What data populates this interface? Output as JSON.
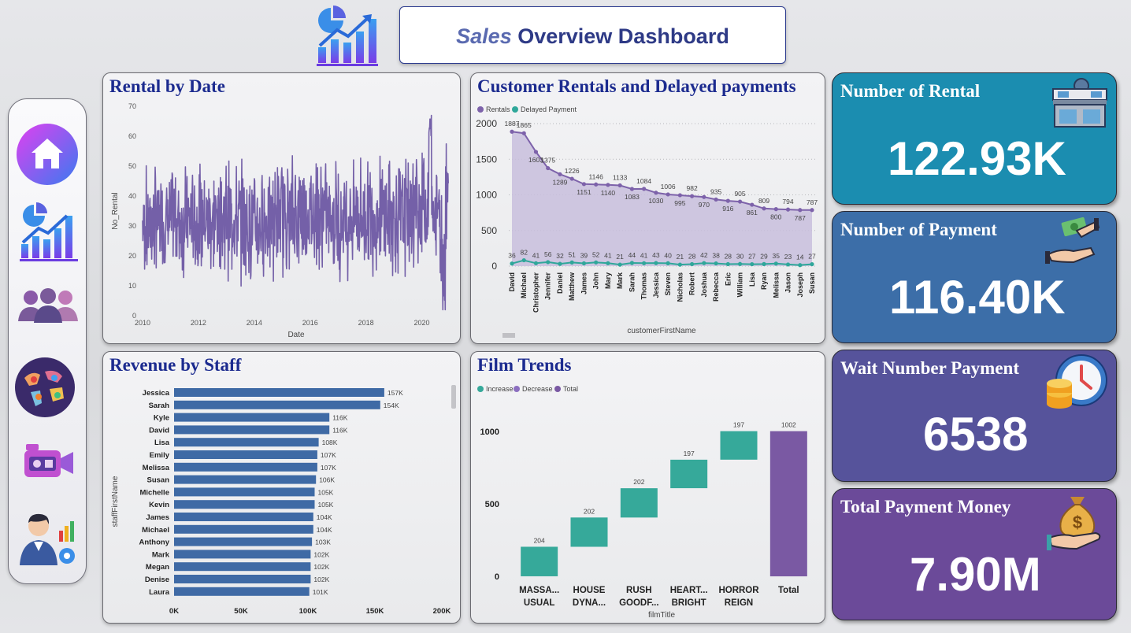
{
  "header": {
    "title_italic": "Sales",
    "title_rest": " Overview Dashboard"
  },
  "sidebar": {
    "items": [
      {
        "icon": "home-icon"
      },
      {
        "icon": "report-chart-icon"
      },
      {
        "icon": "users-icon"
      },
      {
        "icon": "world-map-icon"
      },
      {
        "icon": "video-camera-icon"
      },
      {
        "icon": "analyst-icon"
      }
    ]
  },
  "kpis": [
    {
      "title": "Number of Rental",
      "value": "122.93K",
      "color": "#1b8db0"
    },
    {
      "title": "Number of Payment",
      "value": "116.40K",
      "color": "#3c6ea8"
    },
    {
      "title": "Wait Number Payment",
      "value": "6538",
      "color": "#56539b"
    },
    {
      "title": "Total Payment Money",
      "value": "7.90M",
      "color": "#6b4a99"
    }
  ],
  "chart_data": [
    {
      "type": "line",
      "title": "Rental by Date",
      "xlabel": "Date",
      "ylabel": "No_Rental",
      "xlim": [
        2010,
        2021
      ],
      "ylim": [
        0,
        70
      ],
      "x_ticks": [
        "2010",
        "2012",
        "2014",
        "2016",
        "2018",
        "2020"
      ],
      "y_ticks": [
        "0",
        "10",
        "20",
        "30",
        "40",
        "50",
        "60",
        "70"
      ],
      "color": "#7460a8",
      "description_of_values": "daily series fluctuating mostly between 15 and 45, peaks near 68 in 2020",
      "sample_values": {
        "x": [
          2010.0,
          2011.0,
          2012.0,
          2013.0,
          2014.0,
          2015.0,
          2016.0,
          2017.0,
          2018.0,
          2019.0,
          2020.0,
          2020.3,
          2020.9
        ],
        "y": [
          30,
          32,
          31,
          33,
          30,
          34,
          35,
          32,
          34,
          33,
          36,
          68,
          5
        ]
      }
    },
    {
      "type": "area",
      "title": "Customer Rentals and Delayed payments",
      "xlabel": "customerFirstName",
      "ylim": [
        0,
        2000
      ],
      "y_ticks": [
        "0",
        "500",
        "1000",
        "1500",
        "2000"
      ],
      "categories": [
        "David",
        "Michael",
        "Christopher",
        "Jennifer",
        "Daniel",
        "Matthew",
        "James",
        "John",
        "Mary",
        "Mark",
        "Sarah",
        "Thomas",
        "Jessica",
        "Steven",
        "Nicholas",
        "Robert",
        "Joshua",
        "Rebecca",
        "Eric",
        "William",
        "Lisa",
        "Ryan",
        "Melissa",
        "Jason",
        "Joseph",
        "Susan"
      ],
      "series": [
        {
          "name": "Rentals",
          "color": "#7d62aa",
          "values": [
            1887,
            1865,
            1603,
            1375,
            1289,
            1226,
            1151,
            1146,
            1140,
            1133,
            1083,
            1084,
            1030,
            1006,
            995,
            982,
            970,
            935,
            916,
            905,
            861,
            809,
            800,
            794,
            787,
            787
          ]
        },
        {
          "name": "Delayed Payment",
          "color": "#2fa79a",
          "values": [
            36,
            82,
            41,
            56,
            32,
            51,
            39,
            52,
            41,
            21,
            44,
            41,
            43,
            40,
            21,
            28,
            42,
            38,
            28,
            30,
            27,
            29,
            35,
            23,
            14,
            27
          ]
        }
      ]
    },
    {
      "type": "bar",
      "orientation": "horizontal",
      "title": "Revenue by Staff",
      "ylabel": "staffFirstName",
      "xlim": [
        0,
        200000
      ],
      "x_ticks": [
        "0K",
        "50K",
        "100K",
        "150K",
        "200K"
      ],
      "color": "#3f6aa5",
      "categories": [
        "Jessica",
        "Sarah",
        "Kyle",
        "David",
        "Lisa",
        "Emily",
        "Melissa",
        "Susan",
        "Michelle",
        "Kevin",
        "James",
        "Michael",
        "Anthony",
        "Mark",
        "Megan",
        "Denise",
        "Laura"
      ],
      "values": [
        157000,
        154000,
        116000,
        116000,
        108000,
        107000,
        107000,
        106000,
        105000,
        105000,
        104000,
        104000,
        103000,
        102000,
        102000,
        102000,
        101000
      ],
      "labels": [
        "157K",
        "154K",
        "116K",
        "116K",
        "108K",
        "107K",
        "107K",
        "106K",
        "105K",
        "105K",
        "104K",
        "104K",
        "103K",
        "102K",
        "102K",
        "102K",
        "101K"
      ]
    },
    {
      "type": "waterfall",
      "title": "Film Trends",
      "xlabel": "filmTitle",
      "ylim": [
        0,
        1000
      ],
      "y_ticks": [
        "0",
        "500",
        "1000"
      ],
      "legend": [
        {
          "name": "Increase",
          "color": "#36a99a"
        },
        {
          "name": "Decrease",
          "color": "#8c6fc0"
        },
        {
          "name": "Total",
          "color": "#7a59a3"
        }
      ],
      "categories": [
        [
          "MASSA...",
          "USUAL"
        ],
        [
          "HOUSE",
          "DYNA..."
        ],
        [
          "RUSH",
          "GOODF..."
        ],
        [
          "HEART...",
          "BRIGHT"
        ],
        [
          "HORROR",
          "REIGN"
        ],
        [
          "Total",
          ""
        ]
      ],
      "values": [
        204,
        202,
        202,
        197,
        197,
        1002
      ],
      "labels": [
        "204",
        "202",
        "202",
        "197",
        "197",
        "1002"
      ]
    }
  ]
}
